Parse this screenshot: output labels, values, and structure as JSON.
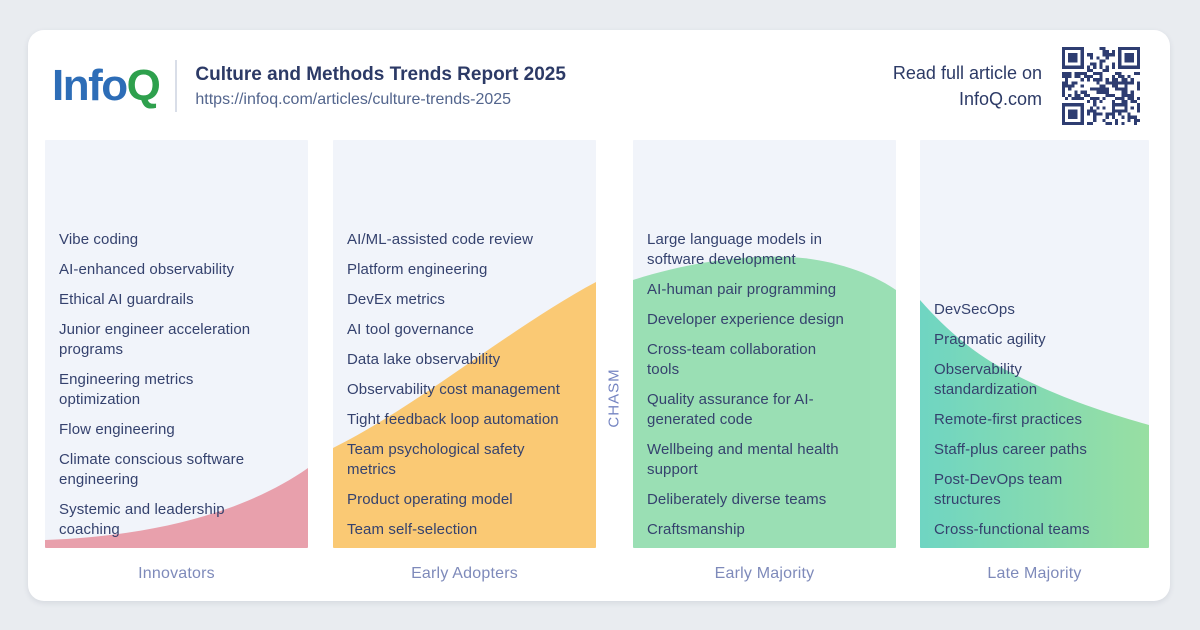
{
  "header": {
    "logo": {
      "part1": "Info",
      "part2": "Q",
      "color1": "#2d6db7",
      "color2": "#2ea04d"
    },
    "title": "Culture and Methods Trends Report 2025",
    "url": "https://infoq.com/articles/culture-trends-2025",
    "cta_line1": "Read full article on",
    "cta_line2": "InfoQ.com"
  },
  "chasm_label": "CHASM",
  "colors": {
    "page_bg": "#e9ecf0",
    "card_bg": "#ffffff",
    "column_bg": "#f1f4fa",
    "innovators_fill": "#e8a0ac",
    "early_adopters_fill": "#fac974",
    "early_majority_fill": "#9adfb4",
    "late_majority_fill_start": "#6fd5c2",
    "late_majority_fill_end": "#98dfa2",
    "item_text": "#35426e",
    "stage_label_text": "#7e8aba",
    "qr_navy": "#2e3d71"
  },
  "columns": [
    {
      "label": "Innovators",
      "fill": "#e8a0ac",
      "items": [
        "Vibe coding",
        "AI-enhanced observability",
        "Ethical AI guardrails",
        "Junior engineer acceleration programs",
        "Engineering metrics optimization",
        "Flow engineering",
        "Climate conscious software engineering",
        "Systemic and leadership coaching"
      ]
    },
    {
      "label": "Early Adopters",
      "fill": "#fac974",
      "items": [
        "AI/ML-assisted code review",
        "Platform engineering",
        "DevEx metrics",
        "AI tool governance",
        "Data lake observability",
        "Observability cost management",
        "Tight feedback loop automation",
        "Team psychological safety metrics",
        "Product operating model",
        "Team self-selection"
      ]
    },
    {
      "label": "Early Majority",
      "fill": "#9adfb4",
      "items": [
        "Large language models in software development",
        "AI-human pair programming",
        "Developer experience design",
        "Cross-team collaboration tools",
        "Quality assurance for AI-generated code",
        "Wellbeing and mental health support",
        "Deliberately diverse teams",
        "Craftsmanship"
      ]
    },
    {
      "label": "Late Majority",
      "fill_start": "#6fd5c2",
      "fill_end": "#98dfa2",
      "items": [
        "DevSecOps",
        "Pragmatic agility",
        "Observability standardization",
        "Remote-first practices",
        "Staff-plus career paths",
        "Post-DevOps team structures",
        "Cross-functional teams"
      ]
    }
  ]
}
